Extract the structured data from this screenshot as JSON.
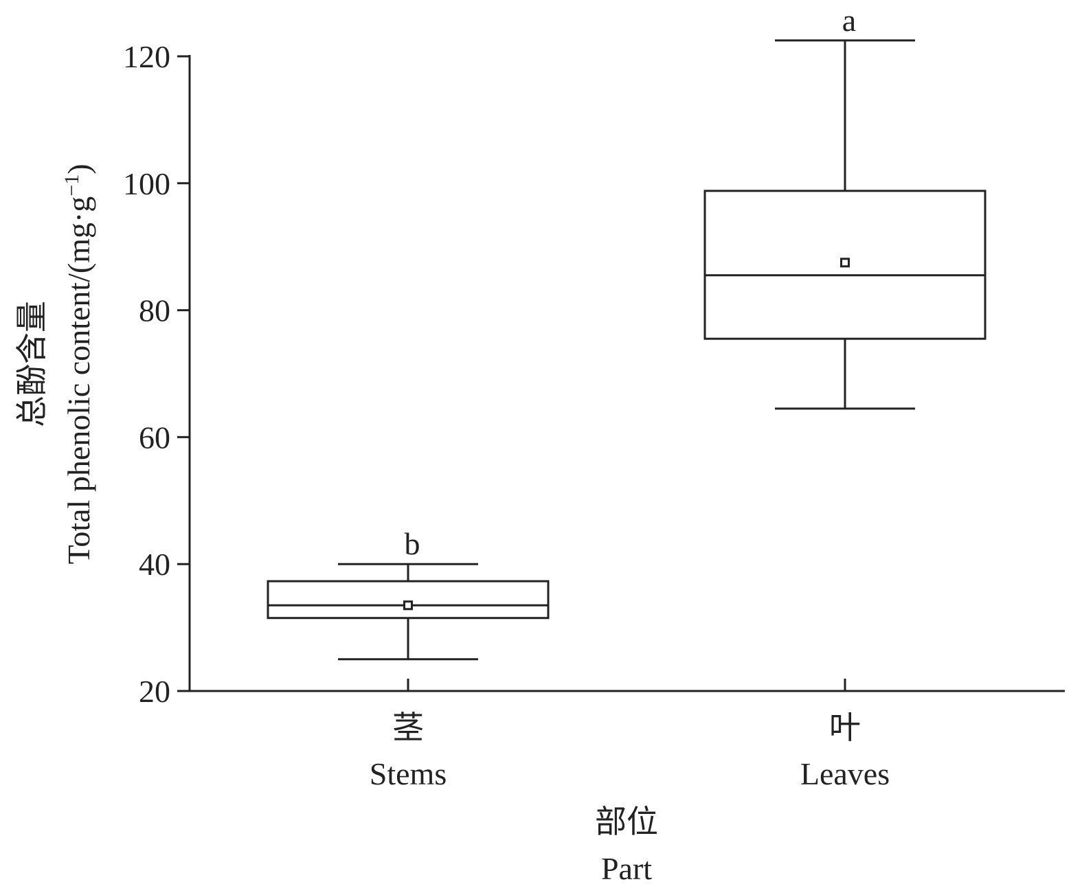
{
  "chart_data": {
    "type": "box",
    "ylim": [
      20,
      120
    ],
    "y_ticks": [
      "20",
      "40",
      "60",
      "80",
      "100",
      "120"
    ],
    "ylabel_zh": "总酚含量",
    "ylabel_en": "Total phenolic content/(mg·g",
    "ylabel_sup": "−1",
    "ylabel_close": ")",
    "xlabel_zh": "部位",
    "xlabel_en": "Part",
    "categories": [
      {
        "zh": "茎",
        "en": "Stems"
      },
      {
        "zh": "叶",
        "en": "Leaves"
      }
    ],
    "boxes": [
      {
        "whisker_low": 25,
        "q1": 31.5,
        "median": 33.5,
        "q3": 37.3,
        "whisker_high": 40,
        "mean": 33.5,
        "significance": "b"
      },
      {
        "whisker_low": 64.5,
        "q1": 75.5,
        "median": 85.5,
        "q3": 98.8,
        "whisker_high": 122.5,
        "mean": 87.5,
        "significance": "a"
      }
    ],
    "colors": {
      "ink": "#222222",
      "background": "#ffffff"
    }
  }
}
